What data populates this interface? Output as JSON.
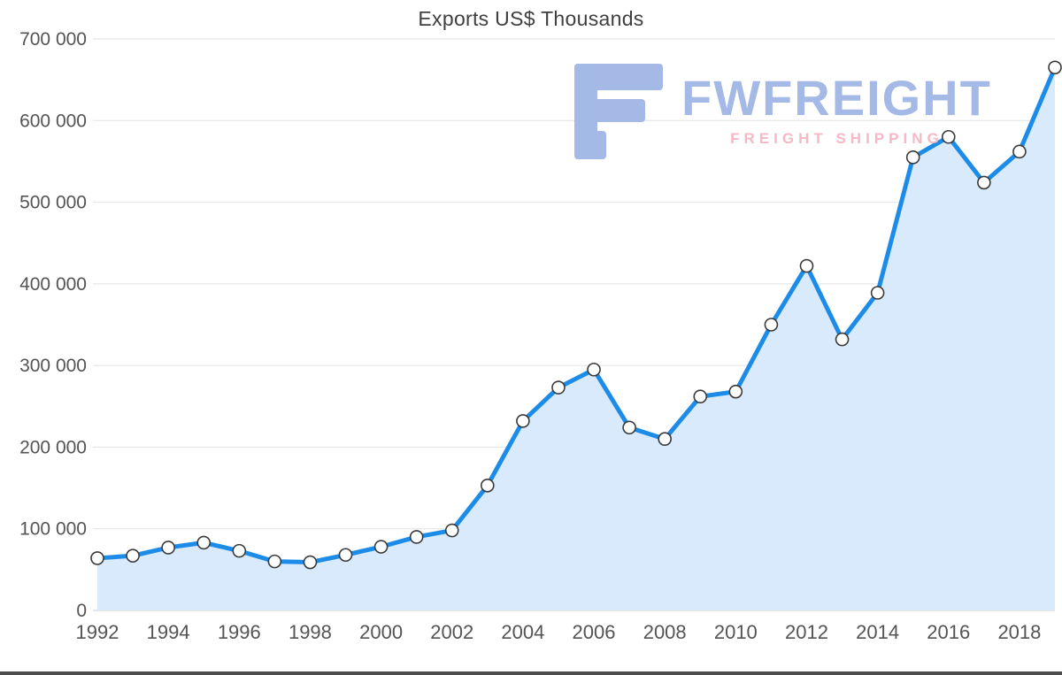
{
  "chart_data": {
    "type": "area",
    "title": "Exports US$ Thousands",
    "xlabel": "",
    "ylabel": "",
    "x": [
      1992,
      1993,
      1994,
      1995,
      1996,
      1997,
      1998,
      1999,
      2000,
      2001,
      2002,
      2003,
      2004,
      2005,
      2006,
      2007,
      2008,
      2009,
      2010,
      2011,
      2012,
      2013,
      2014,
      2015,
      2016,
      2017,
      2018,
      2019
    ],
    "series": [
      {
        "name": "Exports",
        "values": [
          64000,
          67000,
          77000,
          83000,
          73000,
          60000,
          59000,
          68000,
          78000,
          90000,
          98000,
          153000,
          232000,
          273000,
          295000,
          224000,
          210000,
          262000,
          268000,
          350000,
          422000,
          332000,
          389000,
          555000,
          580000,
          524000,
          562000,
          665000
        ]
      }
    ],
    "ylim": [
      0,
      700000
    ],
    "ytick_step": 100000,
    "ytick_labels": [
      "0",
      "100 000",
      "200 000",
      "300 000",
      "400 000",
      "500 000",
      "600 000",
      "700 000"
    ],
    "xtick_labels": [
      "1992",
      "1994",
      "1996",
      "1998",
      "2000",
      "2002",
      "2004",
      "2006",
      "2008",
      "2010",
      "2012",
      "2014",
      "2016",
      "2018"
    ],
    "grid": true,
    "legend": "none",
    "markers": true,
    "colors": {
      "line": "#1d8ce8",
      "area": "#d8eafc",
      "marker_fill": "#ffffff",
      "marker_stroke": "#3a3a3a",
      "grid": "#e2e2e2",
      "axis": "#cfcfcf",
      "tick_text": "#545454",
      "title_text": "#3f3f3f"
    }
  },
  "watermark": {
    "brand": "FWFREIGHT",
    "tagline": "FREIGHT SHIPPING",
    "brand_color": "#a5b9e6",
    "tagline_color": "#f5b8c4"
  }
}
